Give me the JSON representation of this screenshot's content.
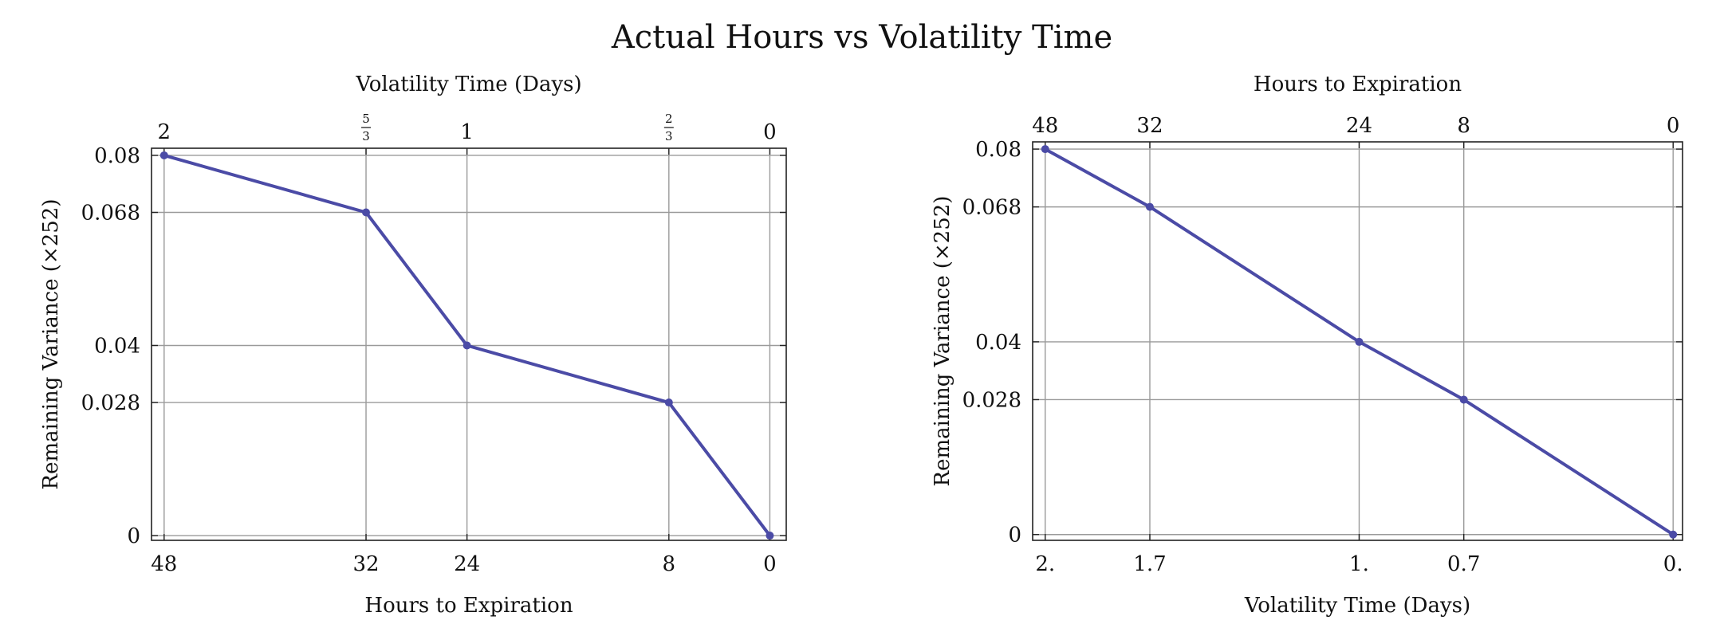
{
  "title": "Actual Hours vs Volatility Time",
  "chart_data": [
    {
      "type": "line",
      "xlabel_bottom": "Hours to Expiration",
      "xlabel_top": "Volatility Time (Days)",
      "ylabel": "Remaining Variance (×252)",
      "x": [
        48,
        32,
        24,
        8,
        0
      ],
      "values": [
        0.08,
        0.068,
        0.04,
        0.028,
        0
      ],
      "xlim": [
        49,
        -1.3
      ],
      "ylim": [
        -0.001,
        0.0815
      ],
      "x_ticks_bottom": [
        {
          "value": 48,
          "label": "48"
        },
        {
          "value": 32,
          "label": "32"
        },
        {
          "value": 24,
          "label": "24"
        },
        {
          "value": 8,
          "label": "8"
        },
        {
          "value": 0,
          "label": "0"
        }
      ],
      "x_ticks_top": [
        {
          "value": 48,
          "label": "2"
        },
        {
          "value": 32,
          "num": "5",
          "den": "3"
        },
        {
          "value": 24,
          "label": "1"
        },
        {
          "value": 8,
          "num": "2",
          "den": "3"
        },
        {
          "value": 0,
          "label": "0"
        }
      ],
      "y_ticks": [
        {
          "value": 0.08,
          "label": "0.08"
        },
        {
          "value": 0.068,
          "label": "0.068"
        },
        {
          "value": 0.04,
          "label": "0.04"
        },
        {
          "value": 0.028,
          "label": "0.028"
        },
        {
          "value": 0,
          "label": "0"
        }
      ],
      "grid": true,
      "color": "#4b4ba6"
    },
    {
      "type": "line",
      "xlabel_bottom": "Volatility Time (Days)",
      "xlabel_top": "Hours to Expiration",
      "ylabel": "Remaining Variance (×252)",
      "x": [
        2,
        1.6667,
        1,
        0.6667,
        0
      ],
      "values": [
        0.08,
        0.068,
        0.04,
        0.028,
        0
      ],
      "xlim": [
        2.04,
        -0.03
      ],
      "ylim": [
        -0.0012,
        0.0815
      ],
      "x_ticks_bottom": [
        {
          "value": 2,
          "label": "2."
        },
        {
          "value": 1.6667,
          "label": "1.7"
        },
        {
          "value": 1,
          "label": "1."
        },
        {
          "value": 0.6667,
          "label": "0.7"
        },
        {
          "value": 0,
          "label": "0."
        }
      ],
      "x_ticks_top": [
        {
          "value": 2,
          "label": "48"
        },
        {
          "value": 1.6667,
          "label": "32"
        },
        {
          "value": 1,
          "label": "24"
        },
        {
          "value": 0.6667,
          "label": "8"
        },
        {
          "value": 0,
          "label": "0"
        }
      ],
      "y_ticks": [
        {
          "value": 0.08,
          "label": "0.08"
        },
        {
          "value": 0.068,
          "label": "0.068"
        },
        {
          "value": 0.04,
          "label": "0.04"
        },
        {
          "value": 0.028,
          "label": "0.028"
        },
        {
          "value": 0,
          "label": "0"
        }
      ],
      "grid": true,
      "color": "#4b4ba6"
    }
  ]
}
